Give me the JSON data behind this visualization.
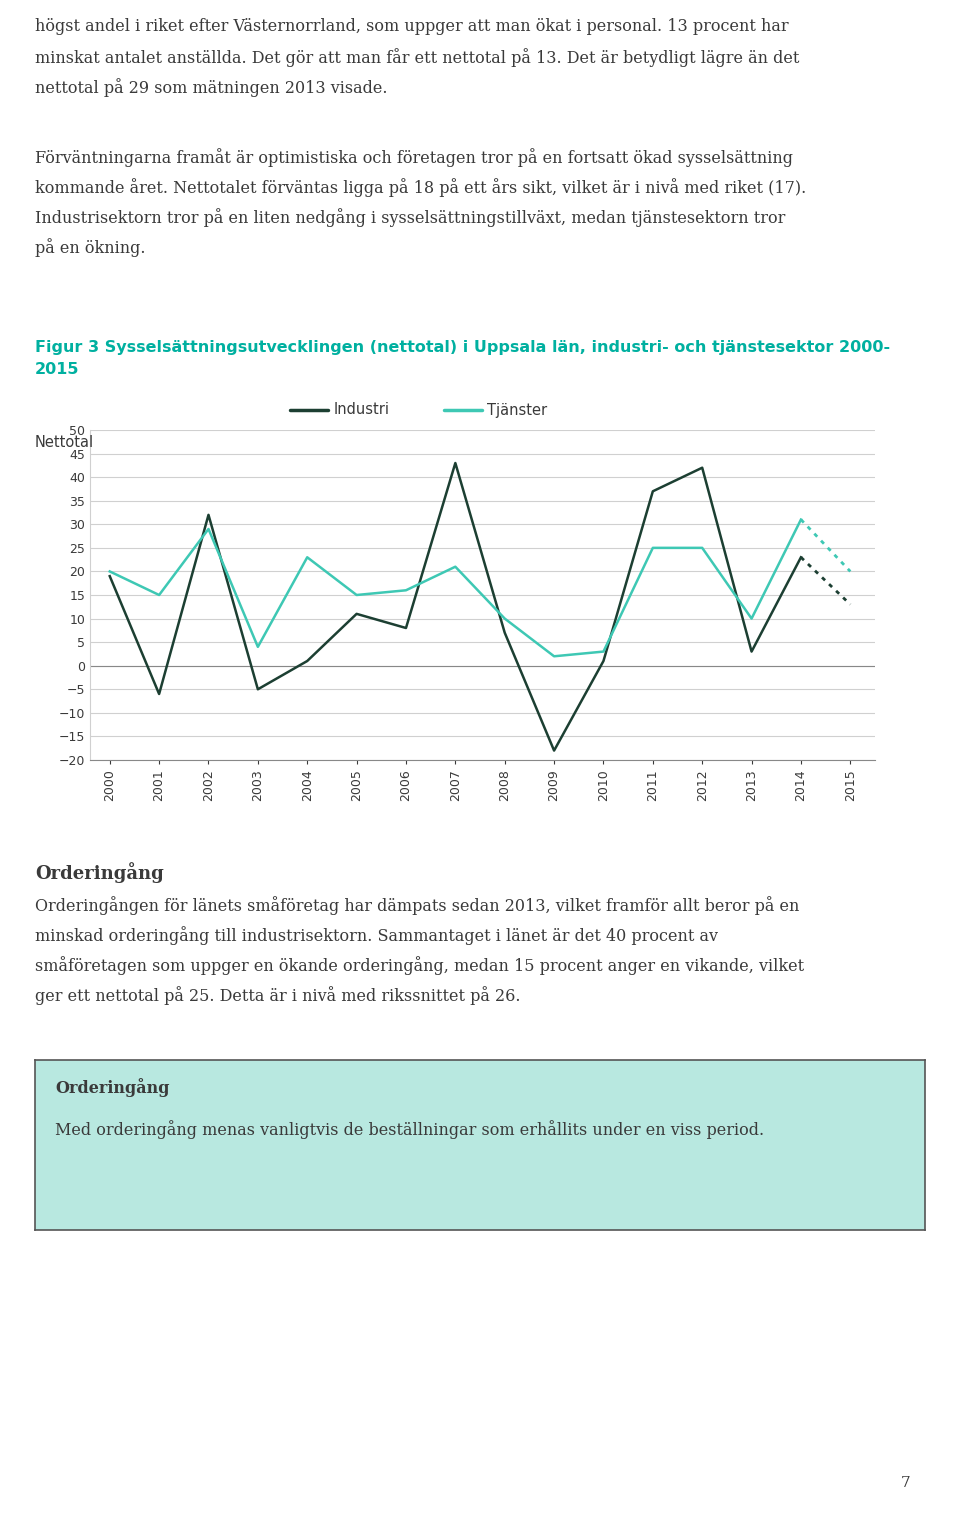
{
  "title_line1": "Figur 3 Sysselsättningsutvecklingen (nettotal) i Uppsala län, industri- och tjänstesektor 2000-",
  "title_line2": "2015",
  "title_color": "#00b0a0",
  "ylabel": "Nettotal",
  "legend_industri": "Industri",
  "legend_tjanster": "Tjänster",
  "industri_color": "#1c3f32",
  "tjanster_color": "#3ec8b4",
  "years": [
    2000,
    2001,
    2002,
    2003,
    2004,
    2005,
    2006,
    2007,
    2008,
    2009,
    2010,
    2011,
    2012,
    2013,
    2014,
    2015
  ],
  "industri_values": [
    19,
    -6,
    32,
    -5,
    1,
    11,
    8,
    43,
    7,
    -18,
    1,
    37,
    42,
    3,
    23,
    13
  ],
  "tjanster_values": [
    20,
    15,
    29,
    4,
    23,
    15,
    16,
    21,
    10,
    2,
    3,
    25,
    25,
    10,
    31,
    20
  ],
  "ylim_min": -20,
  "ylim_max": 50,
  "yticks": [
    -20,
    -15,
    -10,
    -5,
    0,
    5,
    10,
    15,
    20,
    25,
    30,
    35,
    40,
    45,
    50
  ],
  "text_color": "#3a3a3a",
  "page_bg": "#ffffff",
  "box_bg": "#b8e8e0",
  "box_border": "#555555",
  "header_line1": "högst andel i riket efter Västernorrland, som uppger att man ökat i personal. 13 procent har",
  "header_line2": "minskat antalet anställda. Det gör att man får ett nettotal på 13. Det är betydligt lägre än det",
  "header_line3": "nettotal på 29 som mätningen 2013 visade.",
  "header_line4": "Förväntningarna framåt är optimistiska och företagen tror på en fortsatt ökad sysselsättning",
  "header_line5": "kommande året. Nettotalet förväntas ligga på 18 på ett års sikt, vilket är i nivå med riket (17).",
  "header_line6": "Industrisektorn tror på en liten nedgång i sysselsättningstillväxt, medan tjänstesektorn tror",
  "header_line7": "på en ökning.",
  "orderinggang_heading": "Orderingång",
  "orderinggang_line1": "Orderingången för länets småföretag har dämpats sedan 2013, vilket framför allt beror på en",
  "orderinggang_line2": "minskad orderingång till industrisektorn. Sammantaget i länet är det 40 procent av",
  "orderinggang_line3": "småföretagen som uppger en ökande orderingång, medan 15 procent anger en vikande, vilket",
  "orderinggang_line4": "ger ett nettotal på 25. Detta är i nivå med rikssnittet på 26.",
  "box_heading": "Orderingång",
  "box_text": "Med orderingång menas vanligtvis de beställningar som erhållits under en viss period.",
  "page_number": "7"
}
